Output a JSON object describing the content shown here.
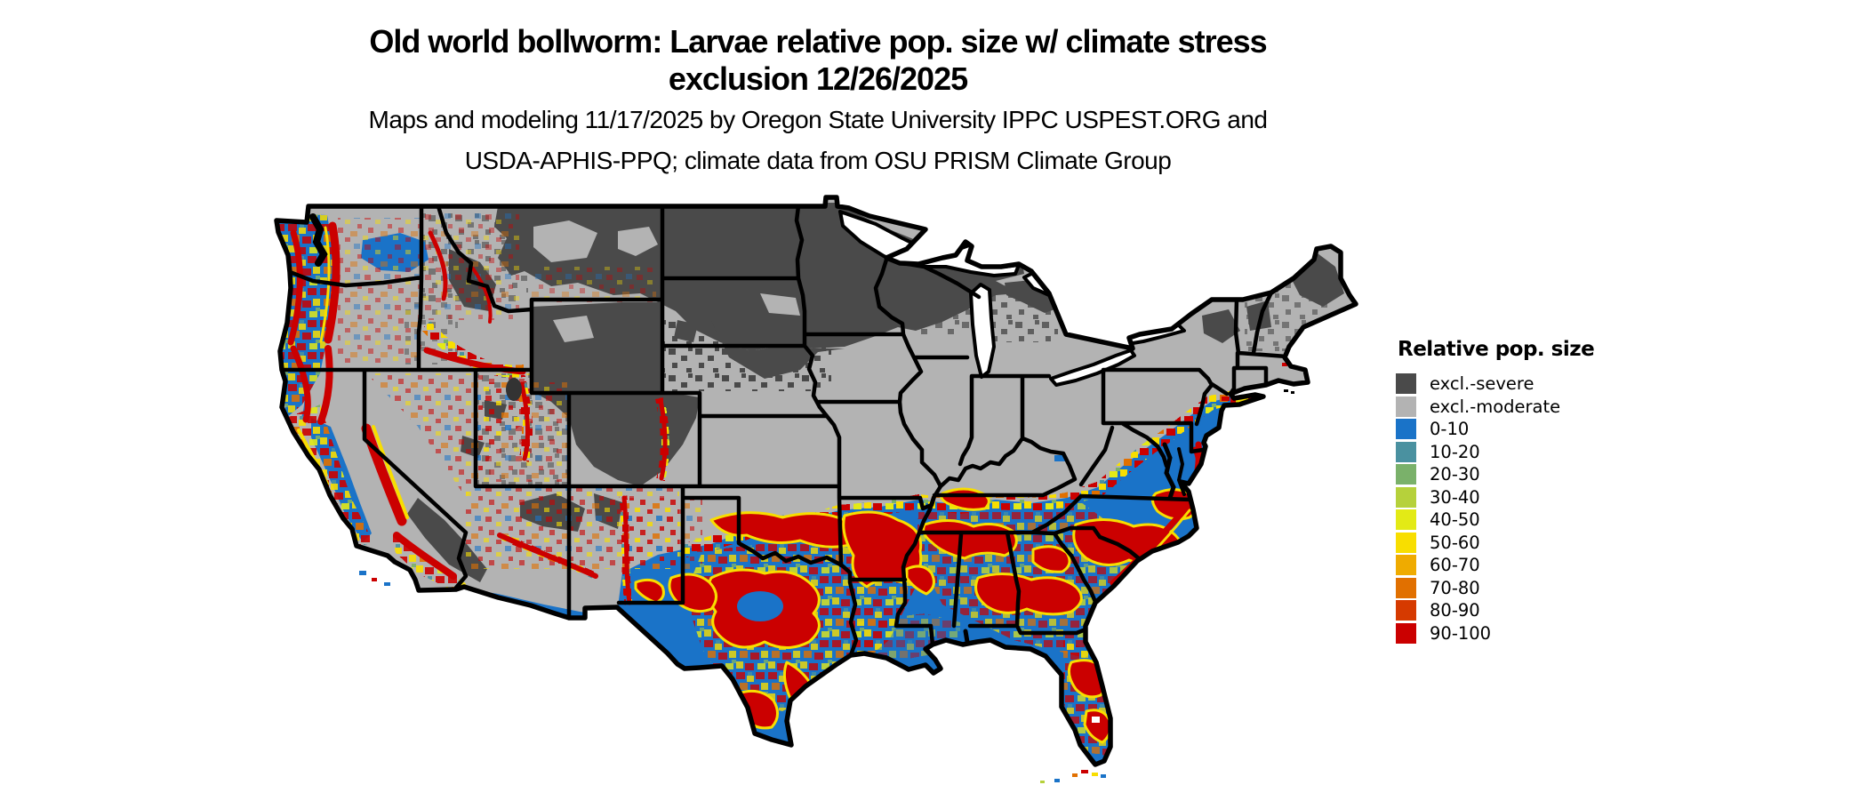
{
  "title": {
    "line1": "Old world bollworm: Larvae relative pop. size w/ climate stress",
    "line2": "exclusion 12/26/2025"
  },
  "subtitle": {
    "line1": "Maps and modeling 11/17/2025 by Oregon State University IPPC USPEST.ORG and",
    "line2": "USDA-APHIS-PPQ; climate data from OSU PRISM Climate Group"
  },
  "legend": {
    "title": "Relative pop. size",
    "items": [
      {
        "label": "excl.-severe",
        "color": "#4a4a4a"
      },
      {
        "label": "excl.-moderate",
        "color": "#b3b3b3"
      },
      {
        "label": "0-10",
        "color": "#1a73c8"
      },
      {
        "label": "10-20",
        "color": "#4a91a0"
      },
      {
        "label": "20-30",
        "color": "#7ab16a"
      },
      {
        "label": "30-40",
        "color": "#b6d13b"
      },
      {
        "label": "40-50",
        "color": "#e3ea16"
      },
      {
        "label": "50-60",
        "color": "#f8de00"
      },
      {
        "label": "60-70",
        "color": "#efab00"
      },
      {
        "label": "70-80",
        "color": "#e17000"
      },
      {
        "label": "80-90",
        "color": "#d63a00"
      },
      {
        "label": "90-100",
        "color": "#cb0000"
      }
    ]
  },
  "map": {
    "kind": "raster suitability map",
    "region": "Contiguous United States",
    "state_border_color": "#000000",
    "water_and_background_color": "#ffffff",
    "excluded_north_color": "#4a4a4a",
    "excluded_moderate_color": "#b3b3b3",
    "dominant_south_color": "#1a73c8",
    "high_population_color": "#cb0000"
  }
}
